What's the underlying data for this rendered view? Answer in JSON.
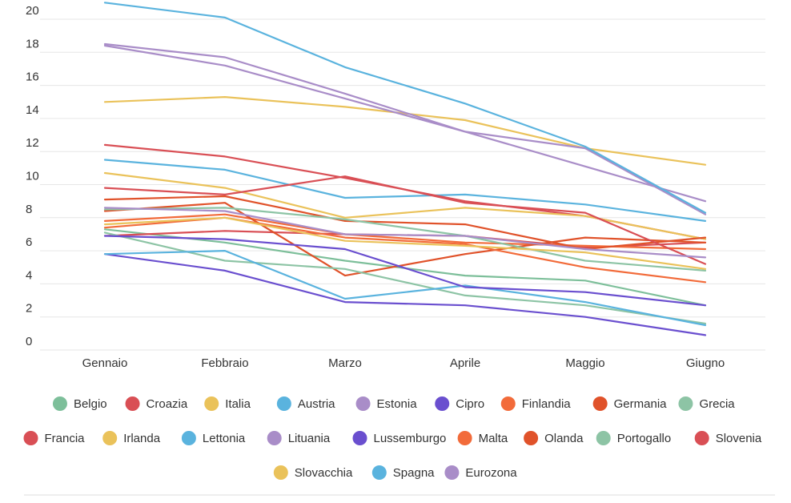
{
  "chart_data": {
    "type": "line",
    "categories": [
      "Gennaio",
      "Febbraio",
      "Marzo",
      "Aprile",
      "Maggio",
      "Giugno"
    ],
    "ylim": [
      0,
      20
    ],
    "yticks": [
      0,
      2,
      4,
      6,
      8,
      10,
      12,
      14,
      16,
      18,
      20
    ],
    "grid": true,
    "legend_position": "bottom",
    "series": [
      {
        "name": "Belgio",
        "color": "#7dbf9a",
        "values": [
          7.3,
          6.5,
          5.4,
          4.5,
          4.2,
          2.7
        ]
      },
      {
        "name": "Croazia",
        "color": "#d94f55",
        "values": [
          6.9,
          7.2,
          7.0,
          6.9,
          6.2,
          6.5
        ]
      },
      {
        "name": "Italia",
        "color": "#eac25a",
        "values": [
          15.0,
          15.3,
          14.7,
          13.9,
          12.2,
          11.2
        ]
      },
      {
        "name": "Austria",
        "color": "#5ab3de",
        "values": [
          11.5,
          10.9,
          9.2,
          9.4,
          8.8,
          7.8
        ]
      },
      {
        "name": "Estonia",
        "color": "#a98dc8",
        "values": [
          18.5,
          17.7,
          15.5,
          13.2,
          11.1,
          9.0
        ]
      },
      {
        "name": "Cipro",
        "color": "#6a4fcf",
        "values": [
          5.8,
          4.8,
          2.9,
          2.7,
          2.0,
          0.9
        ]
      },
      {
        "name": "Finlandia",
        "color": "#f26b3a",
        "values": [
          7.8,
          8.2,
          7.0,
          6.5,
          6.3,
          6.1
        ]
      },
      {
        "name": "Germania",
        "color": "#e0522a",
        "values": [
          8.4,
          8.9,
          4.5,
          5.8,
          6.8,
          6.5
        ]
      },
      {
        "name": "Grecia",
        "color": "#8dc4a5",
        "values": [
          7.1,
          5.4,
          4.9,
          3.3,
          2.7,
          1.6
        ]
      },
      {
        "name": "Francia",
        "color": "#d94f55",
        "values": [
          12.4,
          11.7,
          10.4,
          9.0,
          8.1,
          6.7
        ]
      },
      {
        "name": "Irlanda",
        "color": "#eac25a",
        "values": [
          10.7,
          9.8,
          8.0,
          8.6,
          8.1,
          6.7
        ]
      },
      {
        "name": "Lettonia",
        "color": "#5ab3de",
        "values": [
          5.8,
          6.0,
          3.1,
          3.9,
          2.9,
          1.5
        ]
      },
      {
        "name": "Lituania",
        "color": "#a98dc8",
        "values": [
          18.4,
          17.2,
          15.2,
          13.2,
          12.2,
          8.2
        ]
      },
      {
        "name": "Lussemburgo",
        "color": "#6a4fcf",
        "values": [
          6.9,
          6.7,
          6.1,
          3.8,
          3.5,
          2.7
        ]
      },
      {
        "name": "Malta",
        "color": "#f26b3a",
        "values": [
          7.4,
          8.0,
          6.8,
          6.4,
          5.0,
          4.1
        ]
      },
      {
        "name": "Olanda",
        "color": "#e0522a",
        "values": [
          9.1,
          9.3,
          7.8,
          7.6,
          6.1,
          6.8
        ]
      },
      {
        "name": "Portogallo",
        "color": "#8dc4a5",
        "values": [
          8.5,
          8.6,
          7.9,
          6.9,
          5.4,
          4.8
        ]
      },
      {
        "name": "Slovenia",
        "color": "#d94f55",
        "values": [
          9.8,
          9.4,
          10.5,
          8.9,
          8.3,
          5.2
        ]
      },
      {
        "name": "Slovacchia",
        "color": "#eac25a",
        "values": [
          7.6,
          8.0,
          6.6,
          6.3,
          5.9,
          4.9
        ]
      },
      {
        "name": "Spagna",
        "color": "#5ab3de",
        "values": [
          21.0,
          20.1,
          17.1,
          14.9,
          12.3,
          8.3
        ]
      },
      {
        "name": "Eurozona",
        "color": "#a98dc8",
        "values": [
          8.6,
          8.4,
          7.0,
          6.9,
          6.1,
          5.6
        ]
      }
    ]
  }
}
